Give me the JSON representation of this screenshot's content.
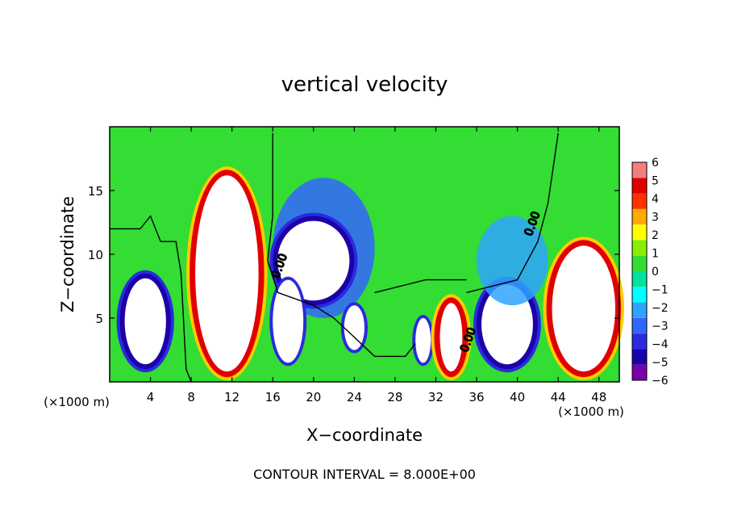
{
  "chart_data": {
    "type": "heatmap",
    "title": "vertical velocity",
    "xlabel": "X−coordinate",
    "ylabel": "Z−coordinate",
    "x_unit_left": "(×1000 m)",
    "x_unit_right": "(×1000 m)",
    "footer": "CONTOUR INTERVAL = 8.000E+00",
    "xlim": [
      0,
      50
    ],
    "ylim": [
      0,
      20
    ],
    "x_ticks": [
      4,
      8,
      12,
      16,
      20,
      24,
      28,
      32,
      36,
      40,
      44,
      48
    ],
    "x_tick_labels": [
      "4",
      "8",
      "12",
      "16",
      "20",
      "24",
      "28",
      "32",
      "36",
      "40",
      "44",
      "48"
    ],
    "y_ticks": [
      5,
      10,
      15
    ],
    "y_tick_labels": [
      "5",
      "10",
      "15"
    ],
    "colorbar": {
      "levels": [
        -6,
        -5,
        -4,
        -3,
        -2,
        -1,
        0,
        1,
        2,
        3,
        4,
        5,
        6
      ],
      "labels": [
        "−6",
        "−5",
        "−4",
        "−3",
        "−2",
        "−1",
        "0",
        "1",
        "2",
        "3",
        "4",
        "5",
        "6"
      ],
      "colors": [
        "#7a00a8",
        "#1c00a8",
        "#2a2ae0",
        "#3366ff",
        "#2fa4ff",
        "#00ffff",
        "#00e0a0",
        "#33dd33",
        "#88ee00",
        "#ffff00",
        "#ffaa00",
        "#ff3300",
        "#e00000",
        "#f08080"
      ]
    },
    "contour_labels": [
      "0.00",
      "0.00",
      "0.00"
    ],
    "cells": [
      {
        "x": [
          1,
          6
        ],
        "z": [
          1,
          8.5
        ],
        "w": -5
      },
      {
        "x": [
          8,
          15
        ],
        "z": [
          0.5,
          16.5
        ],
        "w": 7
      },
      {
        "x": [
          16,
          26
        ],
        "z": [
          5,
          16
        ],
        "w": -3
      },
      {
        "x": [
          16,
          24
        ],
        "z": [
          6,
          13
        ],
        "w": -5
      },
      {
        "x": [
          16,
          19
        ],
        "z": [
          1.5,
          8
        ],
        "w": -6
      },
      {
        "x": [
          23,
          25
        ],
        "z": [
          2.5,
          6
        ],
        "w": -6
      },
      {
        "x": [
          30,
          31.5
        ],
        "z": [
          1.5,
          5
        ],
        "w": -6
      },
      {
        "x": [
          32,
          35
        ],
        "z": [
          0.5,
          6.5
        ],
        "w": 7
      },
      {
        "x": [
          36,
          42
        ],
        "z": [
          1,
          8
        ],
        "w": -5
      },
      {
        "x": [
          36,
          43
        ],
        "z": [
          6,
          13
        ],
        "w": -2
      },
      {
        "x": [
          43,
          50
        ],
        "z": [
          0.5,
          11
        ],
        "w": 7
      }
    ]
  }
}
